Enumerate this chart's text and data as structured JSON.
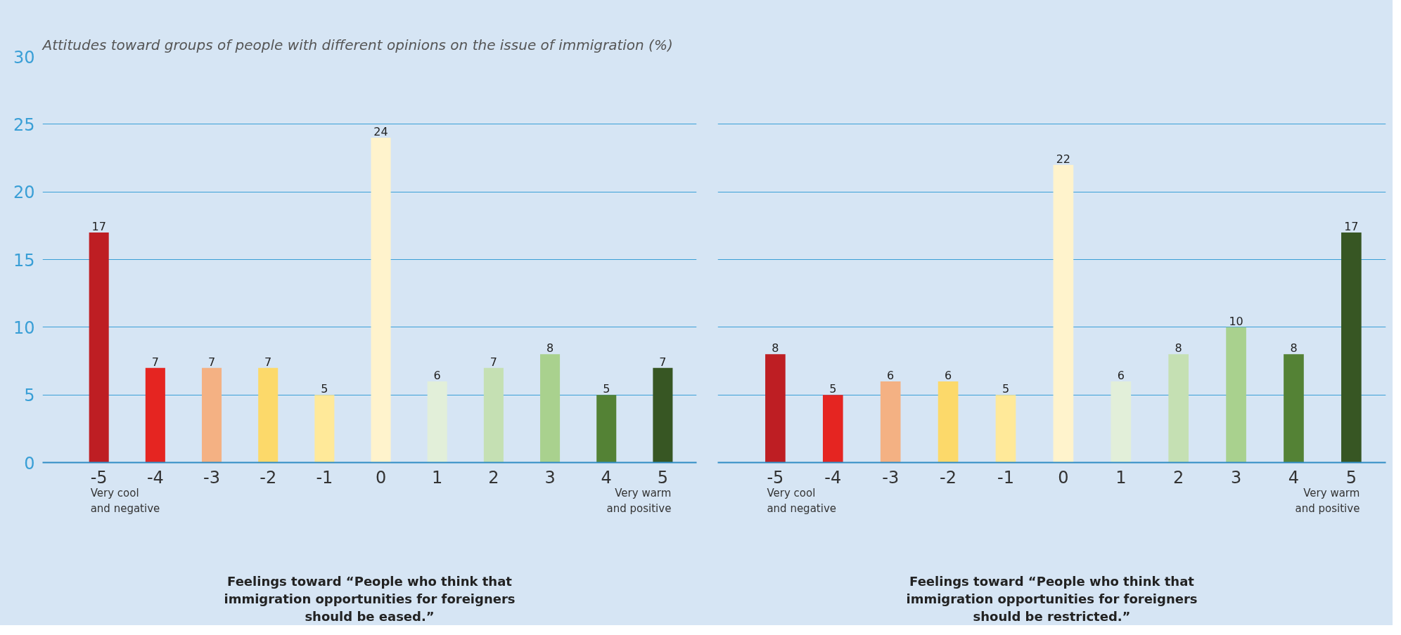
{
  "chart_data": [
    {
      "type": "bar",
      "title": "Attitudes toward groups of people with different opinions on the issue of immigration (%)",
      "xlabel": "Feelings toward “People who think that\nimmigration opportunities for foreigners\nshould be eased.”",
      "categories": [
        "-5",
        "-4",
        "-3",
        "-2",
        "-1",
        "0",
        "1",
        "2",
        "3",
        "4",
        "5"
      ],
      "values": [
        17,
        7,
        7,
        7,
        5,
        24,
        6,
        7,
        8,
        5,
        7
      ],
      "colors": [
        "#be1e23",
        "#e52521",
        "#f4b183",
        "#fcd96a",
        "#ffe999",
        "#fff3cc",
        "#e2efd9",
        "#c5e0b3",
        "#a9d18e",
        "#548235",
        "#375623"
      ],
      "ylim": [
        0,
        30
      ],
      "yticks": [
        0,
        5,
        10,
        15,
        20,
        25,
        30
      ],
      "grid": "y",
      "data_labels": true,
      "annotations": [
        "Very cool\nand negative",
        "Very warm\nand positive"
      ]
    },
    {
      "type": "bar",
      "xlabel": "Feelings toward “People who think that\nimmigration opportunities for foreigners\nshould be restricted.”",
      "categories": [
        "-5",
        "-4",
        "-3",
        "-2",
        "-1",
        "0",
        "1",
        "2",
        "3",
        "4",
        "5"
      ],
      "values": [
        8,
        5,
        6,
        6,
        5,
        22,
        6,
        8,
        10,
        8,
        17
      ],
      "colors": [
        "#be1e23",
        "#e52521",
        "#f4b183",
        "#fcd96a",
        "#ffe999",
        "#fff3cc",
        "#e2efd9",
        "#c5e0b3",
        "#a9d18e",
        "#548235",
        "#375623"
      ],
      "ylim": [
        0,
        30
      ],
      "yticks": [
        0,
        5,
        10,
        15,
        20,
        25,
        30
      ],
      "grid": "y",
      "data_labels": true,
      "tick_labels": "x",
      "annotations": [
        "Very cool\nand negative",
        "Very warm\nand positive"
      ]
    }
  ]
}
